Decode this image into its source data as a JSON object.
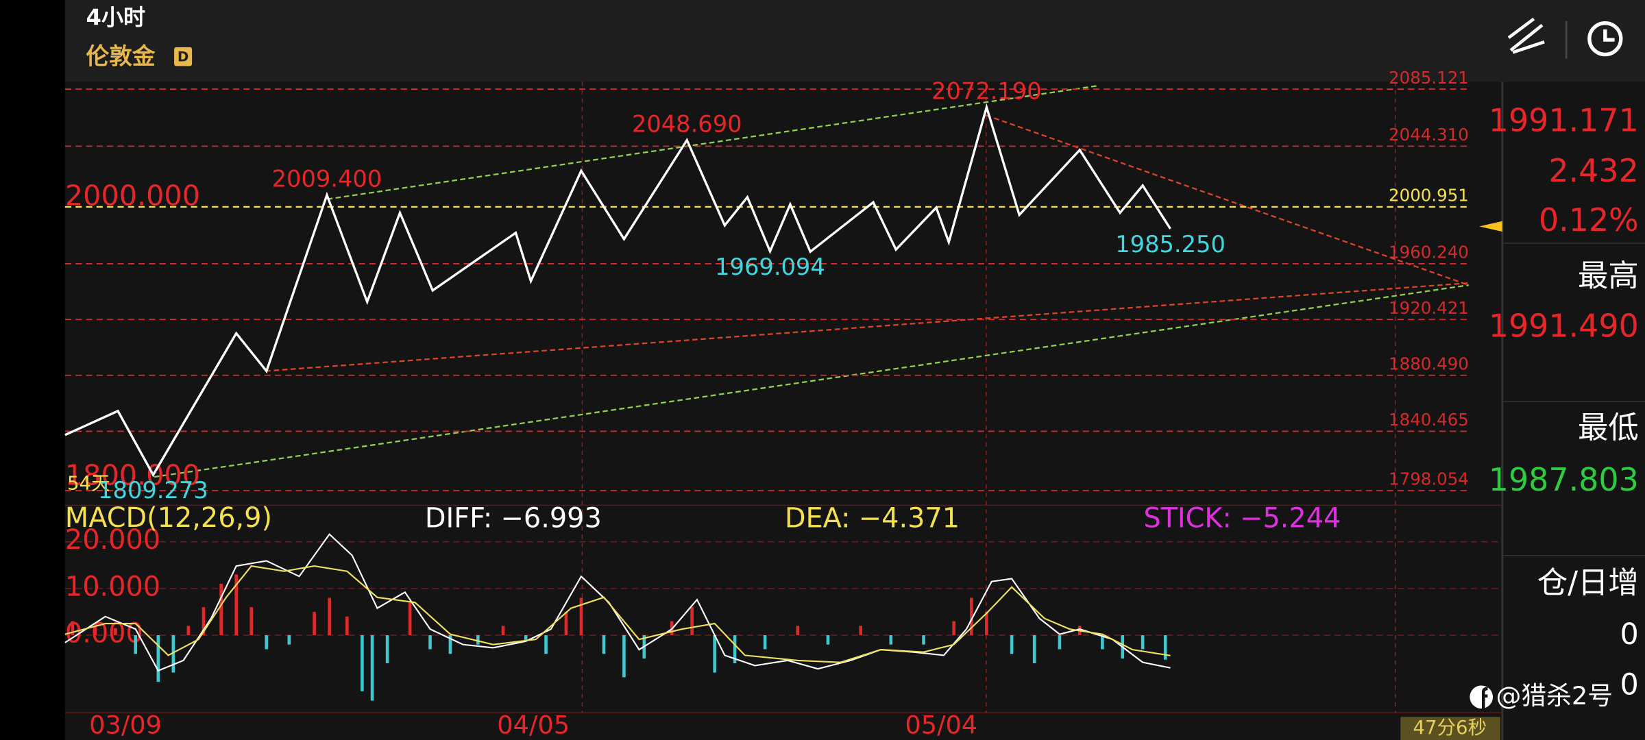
{
  "header": {
    "timeframe": "4小时",
    "symbol": "伦敦金",
    "badge": "D"
  },
  "side_panel": {
    "last": "1991.171",
    "change": "2.432",
    "change_pct": "0.12%",
    "high_label": "最高",
    "high": "1991.490",
    "low_label": "最低",
    "low": "1987.803",
    "oi_label": "仓/日增",
    "oi_1": "0",
    "oi_2": "0"
  },
  "chart_data": [
    {
      "type": "line",
      "xlim": [
        0,
        570
      ],
      "ylim": [
        1787.6,
        2090.4
      ],
      "xticks": [
        {
          "value": 24,
          "label": "03/09"
        },
        {
          "value": 186,
          "label": "04/05"
        },
        {
          "value": 348,
          "label": "05/04"
        }
      ],
      "yticks": [
        {
          "value": 2085.121,
          "label": "2085.121"
        },
        {
          "value": 2044.31,
          "label": "2044.310"
        },
        {
          "value": 1960.24,
          "label": "1960.240"
        },
        {
          "value": 1920.421,
          "label": "1920.421"
        },
        {
          "value": 1880.49,
          "label": "1880.490"
        },
        {
          "value": 1840.465,
          "label": "1840.465"
        },
        {
          "value": 1798.054,
          "label": "1798.054"
        }
      ],
      "grid_color": "#d42a2a",
      "reference_line": {
        "value": 2000.951,
        "label": "2000.951",
        "color": "#f5e050"
      },
      "left_labels": [
        {
          "value": 2000,
          "label": "2000.000"
        },
        {
          "value": 1800,
          "label": "1800.000"
        }
      ],
      "period_label": "54天",
      "series": [
        {
          "color": "#ffffff",
          "x": [
            0,
            21,
            35,
            68,
            80,
            104,
            120,
            133,
            146,
            179,
            185,
            205,
            222,
            247,
            262,
            271,
            280,
            288,
            296,
            321,
            330,
            346,
            351,
            366,
            379,
            403,
            419,
            428,
            439
          ],
          "values": [
            1837.8,
            1855.0,
            1809.273,
            1910.5,
            1883.5,
            2009.4,
            1933.0,
            1996.7,
            1941.2,
            1982.4,
            1947.9,
            2026.7,
            1977.9,
            2048.69,
            1987.7,
            2007.9,
            1969.094,
            2002.7,
            1968.9,
            2004.2,
            1970.4,
            2000.4,
            1975.7,
            2072.19,
            1995.2,
            2041.6,
            1996.7,
            2016.2,
            1985.25
          ]
        }
      ],
      "high_color": "#e8262a",
      "low_color": "#40d8e0",
      "high_labels": [
        {
          "x": 104,
          "value": 2009.4,
          "label": "2009.400"
        },
        {
          "x": 247,
          "value": 2048.69,
          "label": "2048.690"
        },
        {
          "x": 366,
          "value": 2072.19,
          "label": "2072.190"
        }
      ],
      "low_labels": [
        {
          "x": 280,
          "value": 1969.094,
          "label": "1969.094"
        },
        {
          "x": 439,
          "value": 1985.25,
          "label": "1985.250"
        },
        {
          "x": 35,
          "value": 1809.273,
          "label": "1809.273"
        }
      ]
    },
    {
      "type": "line",
      "title": "MACD(12,26,9)",
      "xlim": [
        0,
        570
      ],
      "ylim": [
        -16.6,
        27.6
      ],
      "yticks": [
        {
          "value": 0,
          "label": "0.000"
        },
        {
          "value": 10,
          "label": "10.000"
        },
        {
          "value": 20,
          "label": "20.000"
        }
      ],
      "readouts": [
        {
          "name": "DIFF:",
          "label": "−6.993",
          "color": "#ffffff"
        },
        {
          "name": "DEA:",
          "label": "−4.371",
          "color": "#f5e050"
        },
        {
          "name": "STICK:",
          "label": "−5.244",
          "color": "#e030e0"
        }
      ],
      "series": [
        {
          "color": "#ffffff",
          "x": [
            0,
            16,
            28,
            37,
            47,
            58,
            68,
            80,
            93,
            105,
            114,
            124,
            135,
            145,
            158,
            170,
            183,
            193,
            205,
            216,
            228,
            241,
            251,
            262,
            274,
            287,
            299,
            312,
            324,
            337,
            349,
            358,
            368,
            376,
            387,
            395,
            403,
            416,
            428,
            439
          ],
          "values": [
            -1.6,
            4,
            1.3,
            -7.6,
            -5.4,
            3.6,
            14.8,
            15.9,
            12.6,
            21.6,
            17.1,
            5.8,
            9.2,
            1.3,
            -2,
            -2.7,
            -1.3,
            1.3,
            12.6,
            7,
            -3.1,
            1.3,
            7.6,
            -4.3,
            -6.5,
            -5.4,
            -7.2,
            -5.4,
            -3.1,
            -3.6,
            -4.3,
            1.3,
            11.5,
            12.1,
            3.6,
            0.2,
            1.3,
            -0.9,
            -5.8,
            -6.993
          ]
        },
        {
          "color": "#f0e060",
          "x": [
            0,
            16,
            28,
            41,
            53,
            64,
            74,
            87,
            99,
            112,
            124,
            139,
            153,
            170,
            187,
            201,
            214,
            228,
            245,
            258,
            270,
            291,
            308,
            324,
            341,
            353,
            366,
            376,
            389,
            399,
            412,
            424,
            439
          ],
          "values": [
            0.2,
            2.5,
            2.5,
            -4.3,
            -0.9,
            8.1,
            14.8,
            13.7,
            14.8,
            13.7,
            8.1,
            7,
            0.2,
            -2,
            -0.9,
            5.8,
            8.1,
            -0.9,
            1.3,
            2.5,
            -4.3,
            -5.4,
            -5.8,
            -3.1,
            -3.6,
            -2,
            4.7,
            10.3,
            3.6,
            1.3,
            0.2,
            -3.1,
            -4.371
          ]
        }
      ],
      "bars": {
        "up_color": "#e02a2a",
        "down_color": "#40c8d0",
        "x": [
          3,
          12,
          20,
          28,
          37,
          43,
          49,
          55,
          62,
          68,
          74,
          80,
          89,
          99,
          105,
          112,
          118,
          122,
          128,
          137,
          145,
          153,
          164,
          174,
          183,
          191,
          199,
          205,
          214,
          222,
          230,
          241,
          249,
          258,
          266,
          278,
          291,
          303,
          316,
          328,
          341,
          353,
          360,
          366,
          376,
          385,
          395,
          403,
          412,
          420,
          428,
          437
        ],
        "values": [
          3,
          2,
          1.5,
          -4,
          -10,
          -8,
          2,
          6,
          11,
          13,
          6,
          -3,
          -2,
          5,
          8,
          4,
          -12,
          -14,
          -6,
          7,
          -3,
          -4,
          -2,
          2,
          -1,
          -4,
          5,
          8,
          -4,
          -9,
          -5,
          3,
          6,
          -8,
          -6,
          -3,
          2,
          -2,
          2,
          -2,
          -2,
          3,
          8,
          5,
          -4,
          -6,
          -3,
          2,
          -3,
          -5,
          -3,
          -5.244
        ]
      }
    }
  ],
  "footer": {
    "timer": "47分6秒",
    "watermark": "@猎杀2号"
  }
}
